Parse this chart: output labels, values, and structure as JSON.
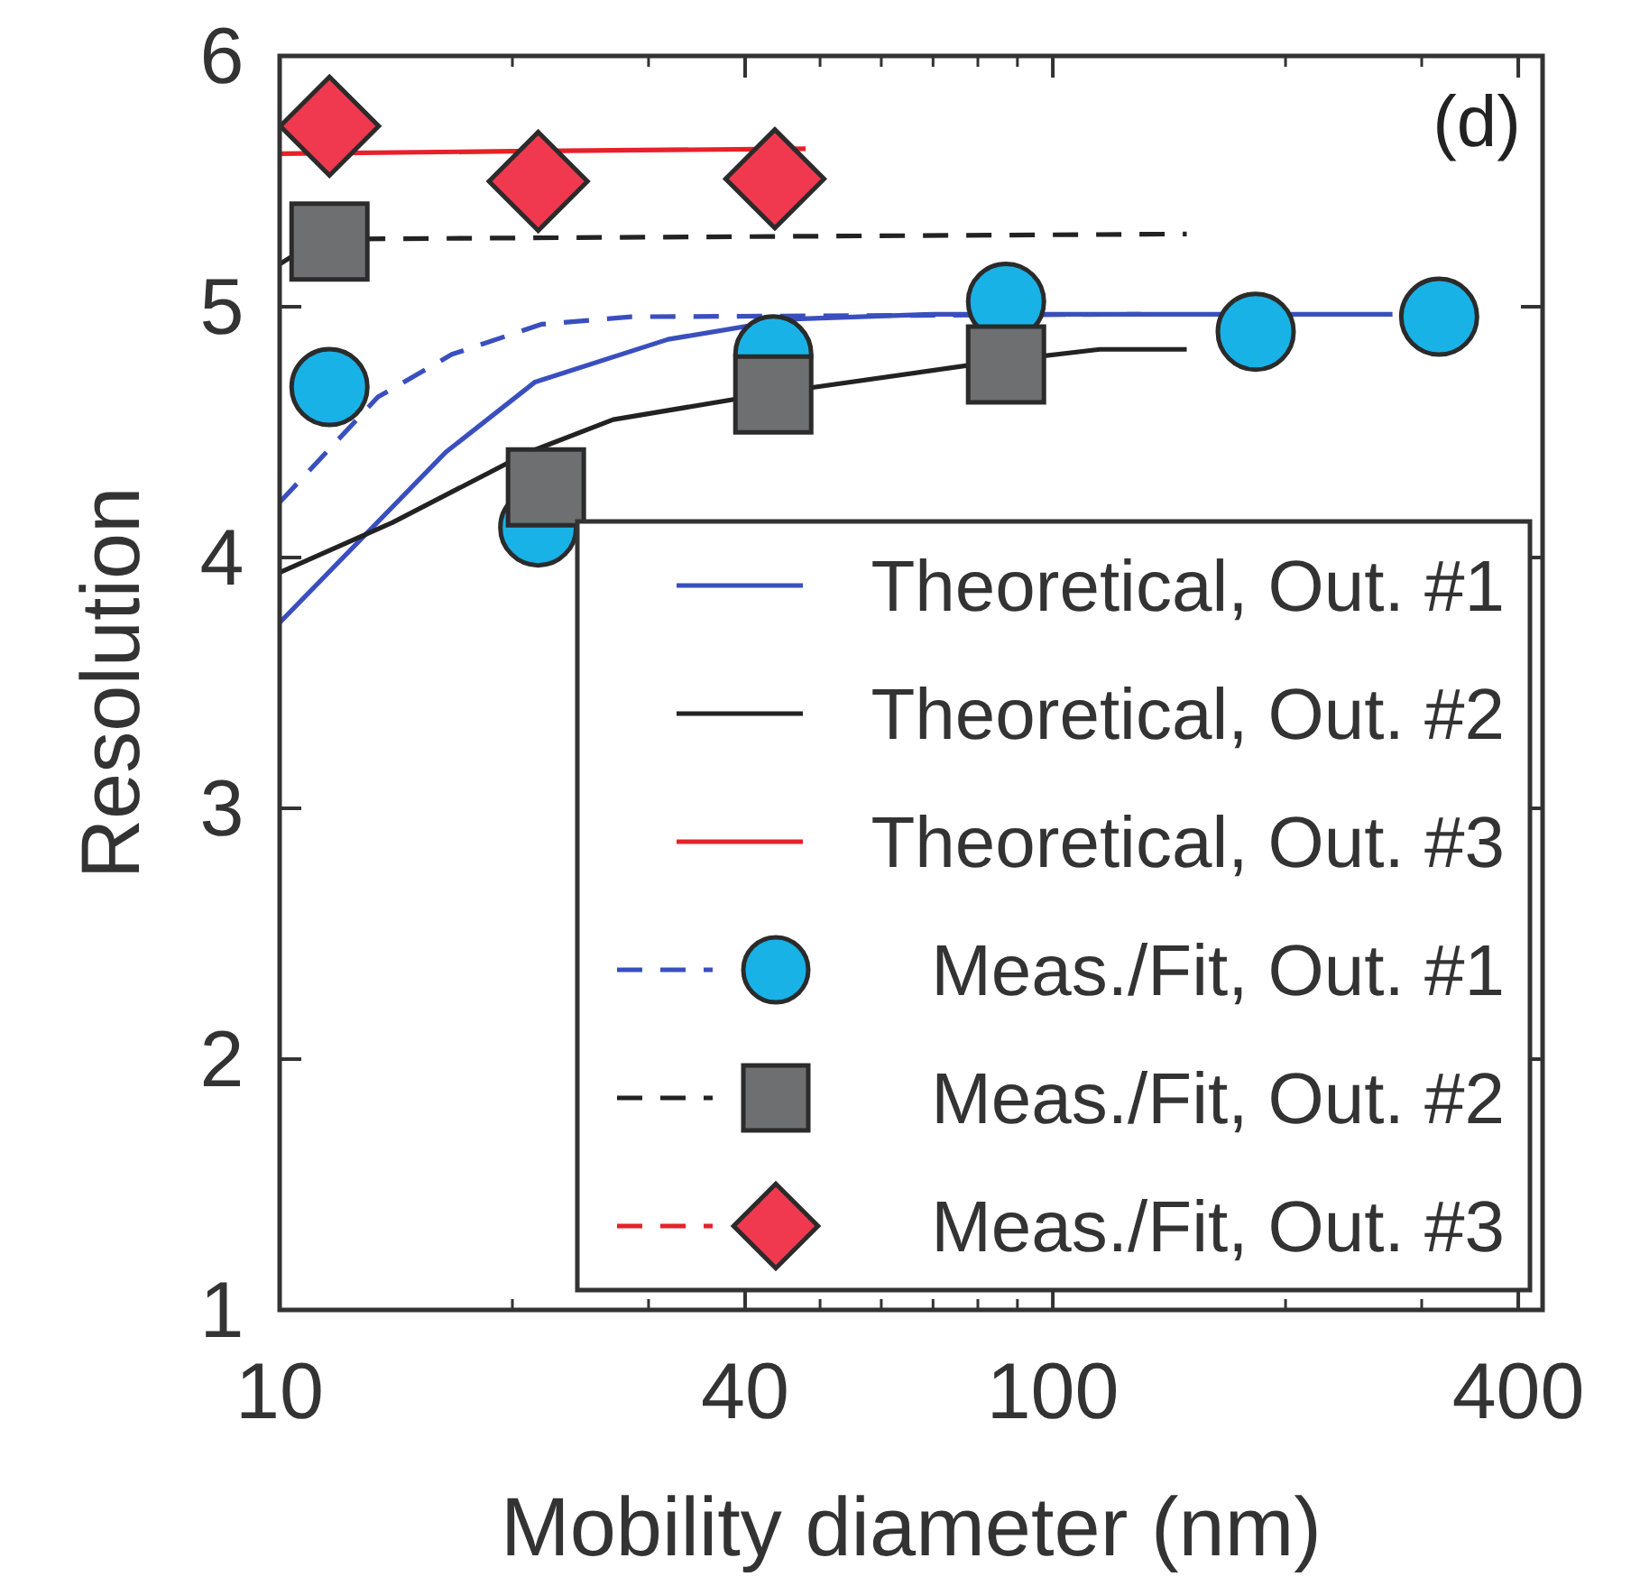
{
  "chart_data": {
    "type": "line",
    "xlabel": "Mobility diameter (nm)",
    "ylabel": "Resolution",
    "annotations": [
      "(d)"
    ],
    "log": "x",
    "xlim": [
      10,
      430
    ],
    "xticks": [
      10,
      40,
      100,
      400
    ],
    "ylim": [
      1,
      6
    ],
    "yticks": [
      1,
      2,
      3,
      4,
      5,
      6
    ],
    "legend": "bottom right",
    "series": [
      {
        "name": "Theoretical, Out. #1",
        "line_style": "solid",
        "color": "#3a4fbf",
        "x": [
          10,
          16.4,
          21.4,
          31.8,
          45.5,
          70,
          275
        ],
        "values": [
          3.74,
          4.42,
          4.7,
          4.87,
          4.95,
          4.97,
          4.97
        ]
      },
      {
        "name": "Theoretical, Out. #2",
        "line_style": "solid",
        "color": "#222222",
        "x": [
          10,
          14,
          21,
          27,
          42.2,
          83.6,
          115,
          149
        ],
        "values": [
          3.94,
          4.14,
          4.42,
          4.55,
          4.65,
          4.78,
          4.83,
          4.83
        ]
      },
      {
        "name": "Theoretical, Out. #3",
        "line_style": "solid",
        "color": "#e8202a",
        "x": [
          10,
          20,
          47.9
        ],
        "values": [
          5.61,
          5.62,
          5.63
        ]
      },
      {
        "name": "Meas./Fit, Out. #1",
        "type": "scatter",
        "marker": "circle",
        "color": "#19b2e6",
        "x": [
          11.6,
          21.6,
          43.5,
          87,
          183,
          316
        ],
        "values": [
          4.68,
          4.12,
          4.81,
          5.02,
          4.9,
          4.96
        ]
      },
      {
        "name": "Meas./Fit, Out. #2",
        "type": "scatter",
        "marker": "square",
        "color": "#6d6f70",
        "x": [
          11.6,
          22.1,
          43.5,
          87
        ],
        "values": [
          5.26,
          4.28,
          4.65,
          4.77
        ]
      },
      {
        "name": "Meas./Fit, Out. #3",
        "type": "scatter",
        "marker": "diamond",
        "color": "#f0394f",
        "x": [
          11.6,
          21.6,
          43.7
        ],
        "values": [
          5.72,
          5.5,
          5.51
        ]
      },
      {
        "line_style": "dashed",
        "color": "#3a4fbf",
        "x": [
          10,
          13.4,
          16.7,
          21.8,
          28.5,
          130
        ],
        "values": [
          4.22,
          4.64,
          4.81,
          4.93,
          4.96,
          4.97
        ]
      },
      {
        "line_style": "dashed",
        "color": "#222222",
        "x": [
          10,
          11,
          12,
          149
        ],
        "values": [
          5.17,
          5.25,
          5.27,
          5.29
        ]
      }
    ]
  }
}
